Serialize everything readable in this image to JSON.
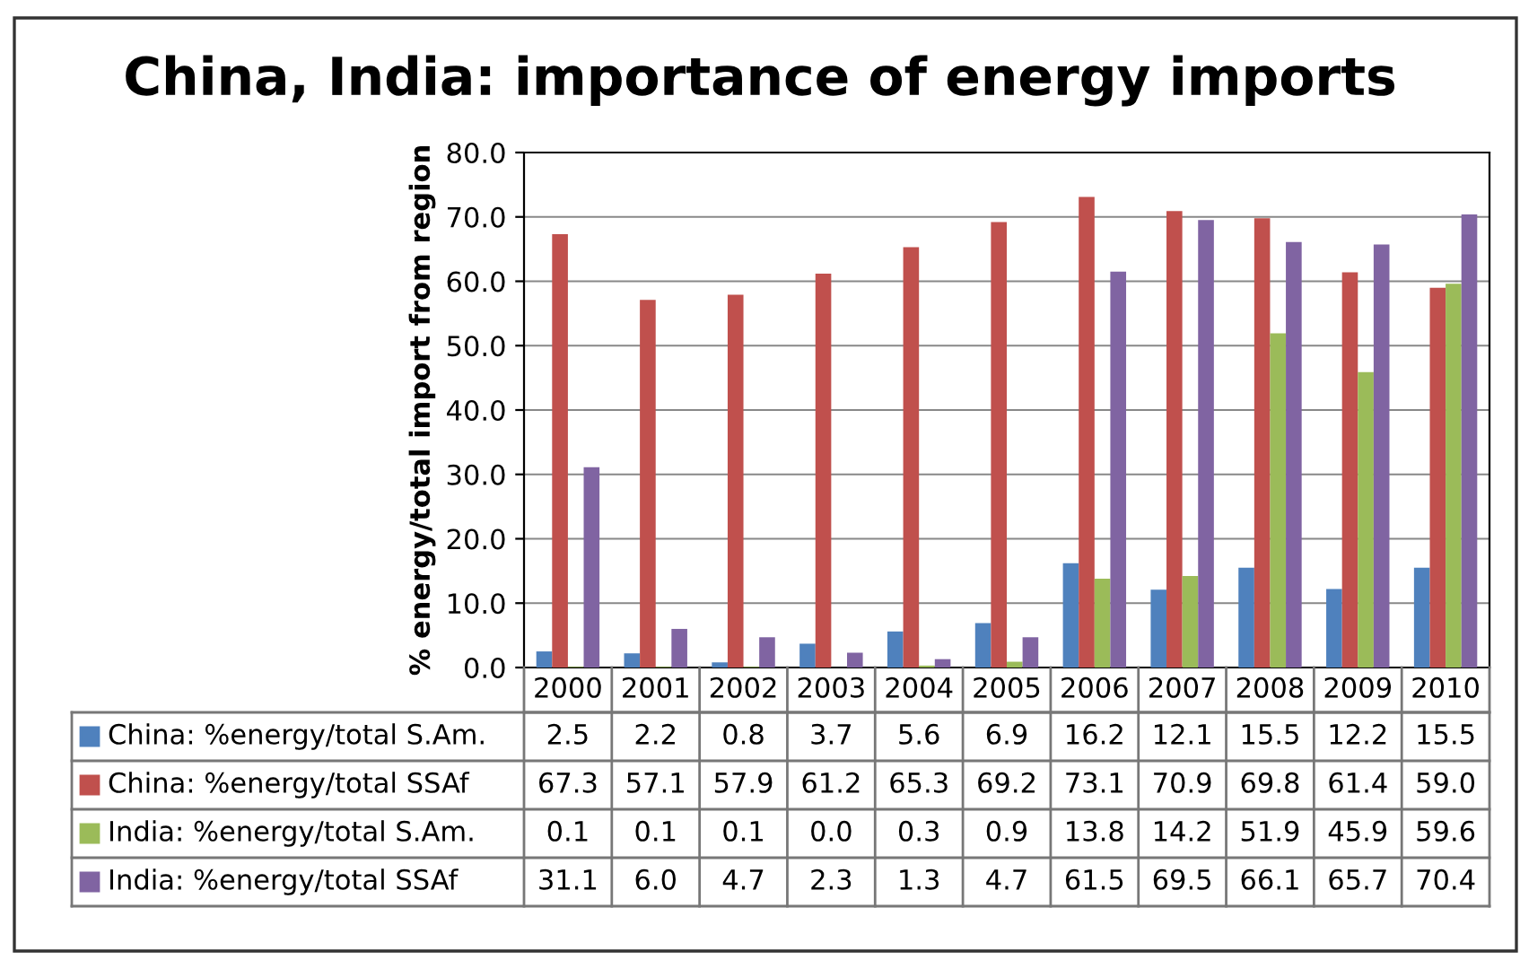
{
  "chart_data": {
    "type": "bar",
    "title": "China, India: importance of energy imports",
    "ylabel": "% energy/total import from region",
    "categories": [
      "2000",
      "2001",
      "2002",
      "2003",
      "2004",
      "2005",
      "2006",
      "2007",
      "2008",
      "2009",
      "2010"
    ],
    "series": [
      {
        "name": "China: %energy/total S.Am.",
        "color": "#4f81bd",
        "values": [
          2.5,
          2.2,
          0.8,
          3.7,
          5.6,
          6.9,
          16.2,
          12.1,
          15.5,
          12.2,
          15.5
        ],
        "value_labels": [
          "2.5",
          "2.2",
          "0.8",
          "3.7",
          "5.6",
          "6.9",
          "16.2",
          "12.1",
          "15.5",
          "12.2",
          "15.5"
        ]
      },
      {
        "name": "China: %energy/total SSAf",
        "color": "#c0504d",
        "values": [
          67.3,
          57.1,
          57.9,
          61.2,
          65.3,
          69.2,
          73.1,
          70.9,
          69.8,
          61.4,
          59.0
        ],
        "value_labels": [
          "67.3",
          "57.1",
          "57.9",
          "61.2",
          "65.3",
          "69.2",
          "73.1",
          "70.9",
          "69.8",
          "61.4",
          "59.0"
        ]
      },
      {
        "name": "India: %energy/total S.Am.",
        "color": "#9bbb59",
        "values": [
          0.1,
          0.1,
          0.1,
          0.0,
          0.3,
          0.9,
          13.8,
          14.2,
          51.9,
          45.9,
          59.6
        ],
        "value_labels": [
          "0.1",
          "0.1",
          "0.1",
          "0.0",
          "0.3",
          "0.9",
          "13.8",
          "14.2",
          "51.9",
          "45.9",
          "59.6"
        ]
      },
      {
        "name": "India: %energy/total SSAf",
        "color": "#8064a2",
        "values": [
          31.1,
          6.0,
          4.7,
          2.3,
          1.3,
          4.7,
          61.5,
          69.5,
          66.1,
          65.7,
          70.4
        ],
        "value_labels": [
          "31.1",
          "6.0",
          "4.7",
          "2.3",
          "1.3",
          "4.7",
          "61.5",
          "69.5",
          "66.1",
          "65.7",
          "70.4"
        ]
      }
    ],
    "ylim": [
      0,
      80
    ],
    "yticks": [
      {
        "value": 0,
        "label": "0.0"
      },
      {
        "value": 10,
        "label": "10.0"
      },
      {
        "value": 20,
        "label": "20.0"
      },
      {
        "value": 30,
        "label": "30.0"
      },
      {
        "value": 40,
        "label": "40.0"
      },
      {
        "value": 50,
        "label": "50.0"
      },
      {
        "value": 60,
        "label": "60.0"
      },
      {
        "value": 70,
        "label": "70.0"
      },
      {
        "value": 80,
        "label": "80.0"
      }
    ],
    "grid": "y",
    "legend": "bottom left"
  }
}
